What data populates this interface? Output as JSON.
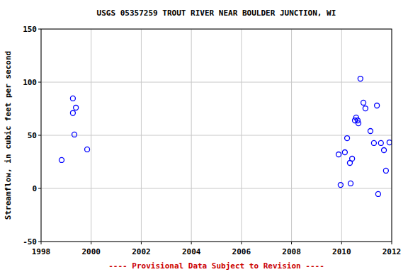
{
  "chart_data": {
    "type": "scatter",
    "title": "USGS 05357259 TROUT RIVER NEAR BOULDER JUNCTION, WI",
    "y_label": "Streamflow, in cubic feet per second",
    "annotation": "---- Provisional Data Subject to Revision ----",
    "x": [
      1998.82,
      1999.27,
      1999.27,
      1999.39,
      1999.33,
      1999.84,
      2009.88,
      2009.96,
      2010.13,
      2010.22,
      2010.33,
      2010.36,
      2010.42,
      2010.53,
      2010.58,
      2010.64,
      2010.67,
      2010.75,
      2010.87,
      2010.95,
      2011.15,
      2011.29,
      2011.41,
      2011.46,
      2011.57,
      2011.69,
      2011.77,
      2011.91
    ],
    "values": [
      26.7,
      84.7,
      71,
      76,
      50.7,
      36.7,
      32,
      3.3,
      34,
      47.3,
      24,
      4.7,
      28,
      64,
      66.7,
      64,
      61.3,
      103.3,
      80.7,
      75.3,
      54,
      42.7,
      78,
      -5.3,
      42.7,
      36,
      16.7,
      43.3
    ],
    "color": "#0000ff",
    "marker": "open-circle",
    "xlim": [
      1998,
      2012
    ],
    "xticks": [
      1998,
      2000,
      2002,
      2004,
      2006,
      2008,
      2010,
      2012
    ],
    "ylim": [
      -50,
      150
    ],
    "yticks": [
      -50,
      0,
      50,
      100,
      150
    ],
    "grid": true
  }
}
